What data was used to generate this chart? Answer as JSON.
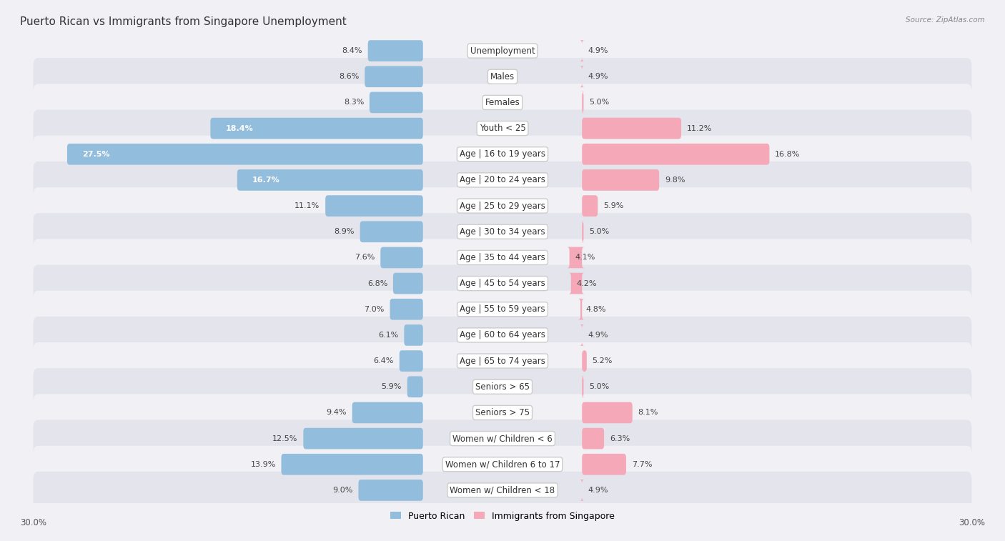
{
  "title": "Puerto Rican vs Immigrants from Singapore Unemployment",
  "source": "Source: ZipAtlas.com",
  "categories": [
    "Unemployment",
    "Males",
    "Females",
    "Youth < 25",
    "Age | 16 to 19 years",
    "Age | 20 to 24 years",
    "Age | 25 to 29 years",
    "Age | 30 to 34 years",
    "Age | 35 to 44 years",
    "Age | 45 to 54 years",
    "Age | 55 to 59 years",
    "Age | 60 to 64 years",
    "Age | 65 to 74 years",
    "Seniors > 65",
    "Seniors > 75",
    "Women w/ Children < 6",
    "Women w/ Children 6 to 17",
    "Women w/ Children < 18"
  ],
  "left_values": [
    8.4,
    8.6,
    8.3,
    18.4,
    27.5,
    16.7,
    11.1,
    8.9,
    7.6,
    6.8,
    7.0,
    6.1,
    6.4,
    5.9,
    9.4,
    12.5,
    13.9,
    9.0
  ],
  "right_values": [
    4.9,
    4.9,
    5.0,
    11.2,
    16.8,
    9.8,
    5.9,
    5.0,
    4.1,
    4.2,
    4.8,
    4.9,
    5.2,
    5.0,
    8.1,
    6.3,
    7.7,
    4.9
  ],
  "left_color": "#92BDDC",
  "right_color": "#F4A8B8",
  "left_label": "Puerto Rican",
  "right_label": "Immigrants from Singapore",
  "axis_max": 30.0,
  "row_colors": [
    "#f5f5f5",
    "#e8e8e8"
  ],
  "bar_bg": "#dde8f0",
  "title_fontsize": 11,
  "label_fontsize": 8.5,
  "value_fontsize": 8.0,
  "footer_label": "30.0%",
  "inside_threshold": 15.0
}
